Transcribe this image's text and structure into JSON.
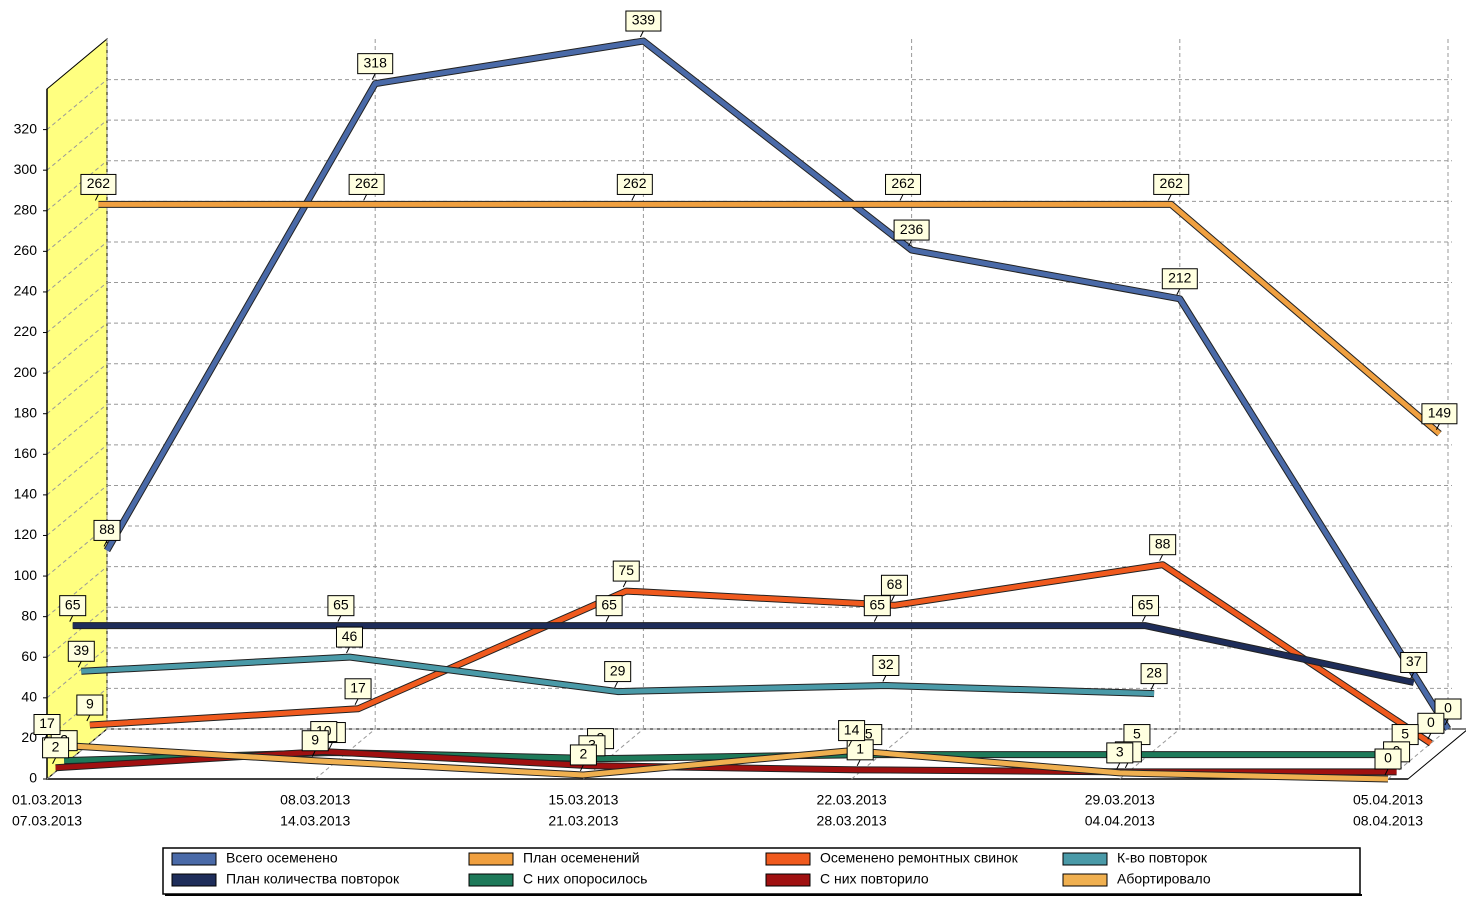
{
  "chart_data": {
    "type": "line",
    "categories": [
      [
        "01.03.2013",
        "07.03.2013"
      ],
      [
        "08.03.2013",
        "14.03.2013"
      ],
      [
        "15.03.2013",
        "21.03.2013"
      ],
      [
        "22.03.2013",
        "28.03.2013"
      ],
      [
        "29.03.2013",
        "04.04.2013"
      ],
      [
        "05.04.2013",
        "08.04.2013"
      ]
    ],
    "ylim": [
      0,
      340
    ],
    "yticks": [
      0,
      20,
      40,
      60,
      80,
      100,
      120,
      140,
      160,
      180,
      200,
      220,
      240,
      260,
      280,
      300,
      320
    ],
    "grid": true,
    "series": [
      {
        "name": "Всего осеменено",
        "color": "#4a6aa8",
        "values": [
          88,
          318,
          339,
          236,
          212,
          0
        ]
      },
      {
        "name": "План осеменений",
        "color": "#f0a040",
        "values": [
          262,
          262,
          262,
          262,
          262,
          149
        ]
      },
      {
        "name": "Осеменено ремонтных свинок",
        "color": "#f05a1e",
        "values": [
          9,
          17,
          75,
          68,
          88,
          0
        ]
      },
      {
        "name": "К-во повторок",
        "color": "#4a9aa8",
        "values": [
          39,
          46,
          29,
          32,
          28,
          null
        ]
      },
      {
        "name": "План количества повторок",
        "color": "#1e2d5a",
        "values": [
          65,
          65,
          65,
          65,
          65,
          37
        ]
      },
      {
        "name": "С них опоросилось",
        "color": "#1e7a5a",
        "values": [
          2,
          6,
          3,
          5,
          5,
          5
        ]
      },
      {
        "name": "С них повторило",
        "color": "#a01010",
        "values": [
          2,
          10,
          3,
          1,
          0,
          0
        ]
      },
      {
        "name": "Абортировало",
        "color": "#f0b050",
        "values": [
          17,
          9,
          2,
          14,
          3,
          0
        ]
      }
    ]
  }
}
